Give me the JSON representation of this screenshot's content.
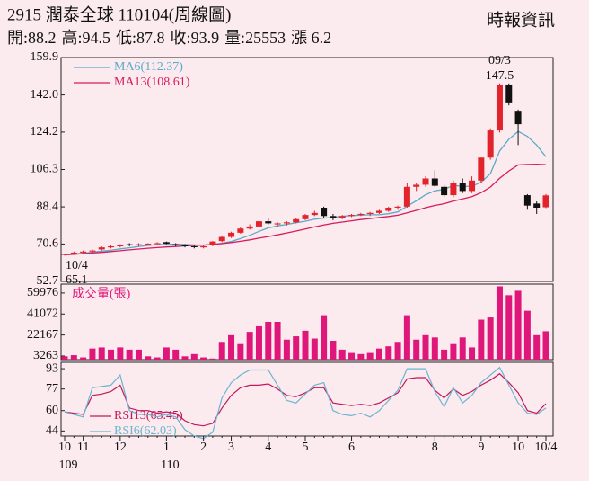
{
  "header": {
    "title": "2915  潤泰全球 110104(周線圖)",
    "source": "時報資訊",
    "quote": [
      {
        "label": "開:",
        "value": 88.2
      },
      {
        "label": "高:",
        "value": 94.5
      },
      {
        "label": "低:",
        "value": 87.8
      },
      {
        "label": "收:",
        "value": 93.9
      },
      {
        "label": "量:",
        "value": 25553
      },
      {
        "label": "漲 ",
        "value": 6.2
      }
    ]
  },
  "chart_data": [
    {
      "type": "candlestick",
      "up_color": "#e3232c",
      "down_color": "#111111",
      "ylim": [
        52.7,
        159.9
      ],
      "yticks": [
        52.7,
        70.6,
        88.4,
        106.3,
        124.2,
        {
          "value": 142,
          "label": "142.0"
        },
        159.9
      ],
      "open": [
        65.5,
        66,
        66.5,
        67,
        68,
        69,
        69.5,
        70.5,
        70,
        70.5,
        70.8,
        71.5,
        70.5,
        70,
        69.5,
        69,
        70,
        72,
        74,
        76,
        78,
        79,
        81.5,
        80,
        80.5,
        81,
        82.5,
        84.5,
        88,
        84,
        83,
        84,
        84.5,
        85,
        85.5,
        86.5,
        88,
        88.5,
        98,
        99,
        102,
        98,
        94,
        100,
        96,
        101,
        112,
        125,
        147,
        134,
        94,
        90,
        88.2
      ],
      "high": [
        66,
        67,
        67.5,
        68,
        69.5,
        70,
        70.5,
        71,
        71,
        71,
        71.5,
        71.8,
        71,
        70.5,
        70,
        70,
        72,
        74.5,
        76.5,
        78.5,
        80,
        82,
        83,
        81,
        81.5,
        83,
        85,
        86.5,
        88.5,
        85,
        84.5,
        85,
        85.5,
        86,
        87,
        88.5,
        89,
        100,
        100,
        103,
        106,
        99,
        101,
        102,
        103,
        112,
        126,
        147.5,
        147.5,
        135,
        94.5,
        91,
        94.5
      ],
      "low": [
        65.1,
        65.5,
        66,
        66.5,
        67.5,
        68.5,
        69,
        69.5,
        69.5,
        70,
        70.5,
        70.5,
        69.5,
        69,
        68.5,
        68.5,
        69.5,
        71.5,
        73.5,
        75.5,
        77.5,
        78.5,
        80,
        79,
        79.5,
        80.5,
        82,
        84,
        83,
        82,
        82.5,
        83.5,
        84,
        84,
        85,
        86,
        87,
        88,
        96,
        98,
        98,
        93,
        93,
        95,
        95,
        100,
        111,
        124,
        137,
        118,
        87,
        85,
        87.8
      ],
      "close": [
        65.8,
        66.5,
        67,
        67.5,
        69,
        69.5,
        70.2,
        70,
        70.5,
        70.8,
        71,
        70.8,
        70,
        69.5,
        69.2,
        69.5,
        71.8,
        74,
        76,
        78,
        79,
        81.5,
        80.5,
        80.5,
        81,
        82.5,
        84.5,
        85.5,
        84,
        83,
        84,
        84.5,
        85,
        85.5,
        86.5,
        88,
        88.5,
        98,
        99,
        102,
        98.5,
        94,
        100,
        96,
        101,
        112,
        125,
        147,
        138,
        128,
        89,
        88,
        93.9
      ],
      "series": [
        {
          "name": "MA6(112.37)",
          "color": "#5aaac8",
          "values": [
            65.5,
            65.8,
            66.2,
            66.7,
            67.2,
            67.6,
            68.3,
            68.8,
            69.4,
            69.9,
            70.3,
            70.5,
            70.5,
            70.4,
            70.2,
            70.1,
            70.4,
            71,
            71.8,
            73.2,
            74.8,
            76.7,
            78.3,
            79.3,
            80,
            80.8,
            81.5,
            82.5,
            83,
            83.3,
            83.9,
            84.2,
            84.4,
            84.6,
            84.6,
            85.1,
            86,
            88.7,
            91.3,
            94.2,
            96.1,
            96.8,
            98.7,
            98.2,
            98.3,
            100.2,
            104.3,
            115.2,
            120.8,
            124.5,
            122.2,
            118,
            112.37
          ]
        },
        {
          "name": "MA13(108.61)",
          "color": "#d81b60",
          "values": [
            65.5,
            65.7,
            66,
            66.3,
            66.6,
            67,
            67.4,
            67.8,
            68.2,
            68.6,
            68.9,
            69.2,
            69.4,
            69.7,
            69.9,
            70.1,
            70.4,
            70.8,
            71.3,
            71.9,
            72.6,
            73.4,
            74.2,
            75,
            75.9,
            76.8,
            77.8,
            78.8,
            79.7,
            80.5,
            81.1,
            81.7,
            82.3,
            82.8,
            83.3,
            83.8,
            84.4,
            85.5,
            86.7,
            88,
            89.1,
            89.9,
            91.2,
            92.2,
            93.3,
            95.2,
            97.9,
            102.1,
            105.6,
            108.5,
            108.7,
            108.8,
            108.61
          ]
        }
      ],
      "high_note": {
        "date": "09/3",
        "value": 147.5
      },
      "low_note": {
        "date": "10/4",
        "value": 65.1
      }
    },
    {
      "type": "bar",
      "label": "成交量(張)",
      "color": "#e0177a",
      "ylim": [
        0,
        68000
      ],
      "yticks": [
        3263,
        22167,
        41072,
        59976
      ],
      "values": [
        3000,
        4000,
        2000,
        10000,
        11000,
        9000,
        11000,
        9000,
        9000,
        3000,
        2000,
        11000,
        9000,
        3000,
        5000,
        2000,
        1000,
        16000,
        22000,
        14000,
        25000,
        30000,
        34000,
        34000,
        18000,
        21000,
        26000,
        19000,
        40000,
        17000,
        9000,
        6000,
        5000,
        6000,
        10000,
        12000,
        16000,
        40000,
        18000,
        22000,
        20000,
        9000,
        14000,
        20000,
        11000,
        36000,
        38000,
        66000,
        58000,
        62000,
        44000,
        22000,
        25553
      ]
    },
    {
      "type": "line",
      "ylim": [
        40,
        98
      ],
      "yticks": [
        44,
        60,
        77,
        93
      ],
      "series": [
        {
          "name": "RSI13(65.45)",
          "color": "#c2185b",
          "values": [
            59,
            58,
            57,
            72,
            73,
            75,
            80,
            62,
            60,
            60,
            58,
            59,
            58,
            52,
            49,
            48,
            50,
            62,
            72,
            78,
            80,
            80,
            81,
            77,
            72,
            71,
            74,
            78,
            78,
            66,
            65,
            64,
            65,
            64,
            66,
            70,
            74,
            85,
            86,
            86,
            76,
            70,
            77,
            72,
            75,
            80,
            84,
            89,
            82,
            74,
            60,
            58,
            65.45
          ]
        },
        {
          "name": "RSI6(62.03)",
          "color": "#6bb5d0",
          "values": [
            59,
            57,
            55,
            78,
            79,
            80,
            88,
            60,
            57,
            57,
            55,
            57,
            55,
            45,
            40,
            38,
            43,
            70,
            82,
            88,
            92,
            92,
            92,
            80,
            68,
            66,
            73,
            80,
            82,
            60,
            57,
            56,
            58,
            55,
            60,
            68,
            76,
            93,
            93,
            93,
            75,
            63,
            78,
            66,
            72,
            82,
            88,
            94,
            80,
            66,
            58,
            57,
            62.03
          ]
        }
      ],
      "categories": [
        "10",
        null,
        "11",
        null,
        null,
        null,
        "12",
        null,
        null,
        null,
        null,
        "1",
        null,
        null,
        null,
        "2",
        null,
        null,
        "3",
        null,
        null,
        null,
        "4",
        null,
        null,
        null,
        "5",
        null,
        null,
        null,
        null,
        "6",
        null,
        null,
        null,
        null,
        null,
        null,
        null,
        null,
        "8",
        null,
        null,
        null,
        null,
        "9",
        null,
        null,
        null,
        "10",
        null,
        null,
        "10/4"
      ],
      "year_labels": [
        "109",
        null,
        null,
        null,
        null,
        null,
        null,
        null,
        null,
        null,
        null,
        "110",
        null,
        null,
        null,
        null,
        null,
        null,
        null,
        null,
        null,
        null,
        null,
        null,
        null,
        null,
        null,
        null,
        null,
        null,
        null,
        null,
        null,
        null,
        null,
        null,
        null,
        null,
        null,
        null,
        null,
        null,
        null,
        null,
        null,
        null,
        null,
        null,
        null,
        null,
        null,
        null,
        null
      ]
    }
  ]
}
